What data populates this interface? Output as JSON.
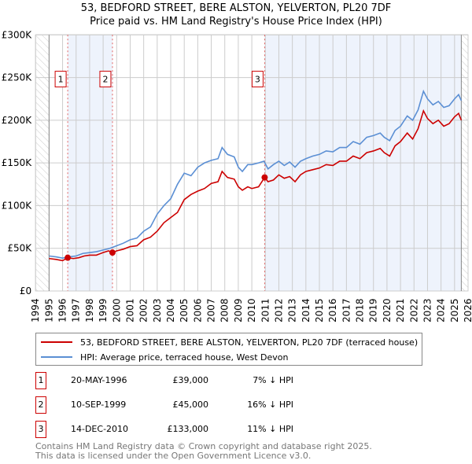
{
  "title": "53, BEDFORD STREET, BERE ALSTON, YELVERTON, PL20 7DF",
  "subtitle": "Price paid vs. HM Land Registry's House Price Index (HPI)",
  "colors": {
    "property": "#cc0000",
    "hpi": "#5b8fd4",
    "shade": "#eef3fc",
    "grid": "#cccccc"
  },
  "chart_data": {
    "type": "line",
    "title": "53, BEDFORD STREET, BERE ALSTON, YELVERTON, PL20 7DF - Price paid vs. HM Land Registry's House Price Index (HPI)",
    "xlim": [
      1994,
      2026
    ],
    "ylim": [
      0,
      300000
    ],
    "x_ticks": [
      "1994",
      "1995",
      "1996",
      "1997",
      "1998",
      "1999",
      "2000",
      "2001",
      "2002",
      "2003",
      "2004",
      "2005",
      "2006",
      "2007",
      "2008",
      "2009",
      "2010",
      "2011",
      "2012",
      "2013",
      "2014",
      "2015",
      "2016",
      "2017",
      "2018",
      "2019",
      "2020",
      "2021",
      "2022",
      "2023",
      "2024",
      "2025",
      "2026"
    ],
    "y_ticks": [
      {
        "v": 0,
        "label": "£0"
      },
      {
        "v": 50000,
        "label": "£50K"
      },
      {
        "v": 100000,
        "label": "£100K"
      },
      {
        "v": 150000,
        "label": "£150K"
      },
      {
        "v": 200000,
        "label": "£200K"
      },
      {
        "v": 250000,
        "label": "£250K"
      },
      {
        "v": 300000,
        "label": "£300K"
      }
    ],
    "grid": true,
    "series": [
      {
        "name": "53, BEDFORD STREET, BERE ALSTON, YELVERTON, PL20 7DF (terraced house)",
        "color": "#cc0000",
        "x": [
          1995.0,
          1995.5,
          1996.0,
          1996.38,
          1996.8,
          1997.2,
          1997.6,
          1998.0,
          1998.5,
          1999.0,
          1999.4,
          1999.7,
          2000.0,
          2000.5,
          2001.0,
          2001.5,
          2002.0,
          2002.5,
          2003.0,
          2003.5,
          2004.0,
          2004.5,
          2005.0,
          2005.5,
          2006.0,
          2006.5,
          2007.0,
          2007.5,
          2007.8,
          2008.2,
          2008.7,
          2009.0,
          2009.3,
          2009.7,
          2010.0,
          2010.5,
          2010.95,
          2011.2,
          2011.6,
          2012.0,
          2012.4,
          2012.8,
          2013.2,
          2013.6,
          2014.0,
          2014.5,
          2015.0,
          2015.5,
          2016.0,
          2016.5,
          2017.0,
          2017.5,
          2018.0,
          2018.5,
          2019.0,
          2019.5,
          2019.8,
          2020.2,
          2020.6,
          2021.0,
          2021.5,
          2021.9,
          2022.3,
          2022.7,
          2023.0,
          2023.4,
          2023.8,
          2024.2,
          2024.6,
          2025.0,
          2025.3,
          2025.5
        ],
        "y": [
          38000,
          37000,
          35500,
          39000,
          38000,
          39000,
          41000,
          42000,
          42000,
          45000,
          47000,
          45000,
          47000,
          49000,
          52000,
          53000,
          60000,
          63000,
          70000,
          80000,
          86000,
          92000,
          107000,
          113000,
          117000,
          120000,
          126000,
          128000,
          140000,
          133000,
          131000,
          122000,
          118000,
          122000,
          120000,
          122000,
          133000,
          128000,
          130000,
          136000,
          132000,
          134000,
          128000,
          136000,
          140000,
          142000,
          144000,
          148000,
          147000,
          152000,
          152000,
          158000,
          155000,
          162000,
          164000,
          167000,
          162000,
          158000,
          170000,
          175000,
          185000,
          178000,
          190000,
          211000,
          202000,
          196000,
          200000,
          193000,
          196000,
          204000,
          208000,
          200000
        ]
      },
      {
        "name": "HPI: Average price, terraced house, West Devon",
        "color": "#5b8fd4",
        "x": [
          1995.0,
          1995.5,
          1996.0,
          1996.5,
          1997.0,
          1997.5,
          1998.0,
          1998.5,
          1999.0,
          1999.5,
          2000.0,
          2000.5,
          2001.0,
          2001.5,
          2002.0,
          2002.5,
          2003.0,
          2003.5,
          2004.0,
          2004.5,
          2005.0,
          2005.5,
          2006.0,
          2006.5,
          2007.0,
          2007.5,
          2007.8,
          2008.2,
          2008.7,
          2009.0,
          2009.3,
          2009.7,
          2010.0,
          2010.5,
          2010.9,
          2011.2,
          2011.6,
          2012.0,
          2012.4,
          2012.8,
          2013.2,
          2013.6,
          2014.0,
          2014.5,
          2015.0,
          2015.5,
          2016.0,
          2016.5,
          2017.0,
          2017.5,
          2018.0,
          2018.5,
          2019.0,
          2019.5,
          2019.8,
          2020.2,
          2020.6,
          2021.0,
          2021.5,
          2021.9,
          2022.3,
          2022.7,
          2023.0,
          2023.4,
          2023.8,
          2024.2,
          2024.6,
          2025.0,
          2025.3,
          2025.5
        ],
        "y": [
          41000,
          40000,
          38500,
          40000,
          41000,
          44000,
          45000,
          46000,
          48000,
          50000,
          53000,
          56000,
          60000,
          62000,
          70000,
          75000,
          90000,
          100000,
          108000,
          125000,
          138000,
          135000,
          145000,
          150000,
          153000,
          155000,
          168000,
          160000,
          157000,
          145000,
          140000,
          148000,
          148000,
          150000,
          152000,
          143000,
          148000,
          152000,
          147000,
          151000,
          145000,
          152000,
          155000,
          158000,
          160000,
          164000,
          163000,
          168000,
          168000,
          175000,
          172000,
          180000,
          182000,
          185000,
          180000,
          176000,
          188000,
          193000,
          205000,
          200000,
          212000,
          234000,
          225000,
          218000,
          222000,
          215000,
          217000,
          225000,
          230000,
          223000
        ]
      }
    ],
    "sales": [
      {
        "n": "1",
        "x": 1996.38,
        "price": 39000,
        "date": "20-MAY-1996",
        "price_label": "£39,000",
        "hpi": "7% ↓ HPI"
      },
      {
        "n": "2",
        "x": 1999.69,
        "price": 45000,
        "date": "10-SEP-1999",
        "price_label": "£45,000",
        "hpi": "16% ↓ HPI"
      },
      {
        "n": "3",
        "x": 2010.95,
        "price": 133000,
        "date": "14-DEC-2010",
        "price_label": "£133,000",
        "hpi": "11% ↓ HPI"
      }
    ],
    "legend": "below"
  },
  "legend": {
    "property": "53, BEDFORD STREET, BERE ALSTON, YELVERTON, PL20 7DF (terraced house)",
    "hpi": "HPI: Average price, terraced house, West Devon"
  },
  "footer": {
    "line1": "Contains HM Land Registry data © Crown copyright and database right 2025.",
    "line2": "This data is licensed under the Open Government Licence v3.0."
  }
}
